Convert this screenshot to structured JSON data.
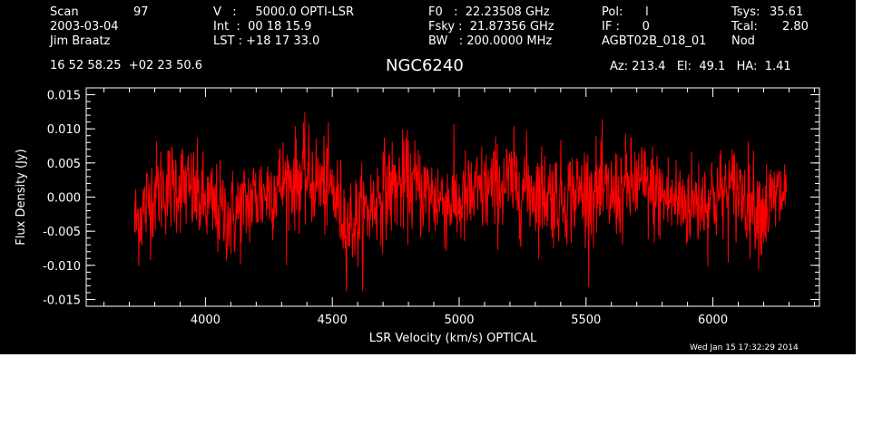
{
  "header": {
    "col1": {
      "scan_label": "Scan",
      "scan_value": "97",
      "date": "2003-03-04",
      "observer": "Jim Braatz"
    },
    "col2": {
      "v_line": "V   :     5000.0 OPTI-LSR",
      "int_line": "Int  :  00 18 15.9",
      "lst_line": "LST : +18 17 33.0"
    },
    "col3": {
      "f0_line": "F0   :  22.23508 GHz",
      "fsky_line": "Fsky :  21.87356 GHz",
      "bw_line": "BW   : 200.0000 MHz"
    },
    "col4": {
      "pol_line": "Pol:      l",
      "if_line": "IF :      0",
      "session": "AGBT02B_018_01"
    },
    "col5": {
      "tsys_label": "Tsys:",
      "tsys_value": "35.61",
      "tcal_label": "Tcal:",
      "tcal_value": "2.80",
      "mode": "Nod"
    },
    "coords": "16 52 58.25  +02 23 50.6",
    "source": "NGC6240",
    "pointing": "Az: 213.4   El:  49.1   HA:  1.41"
  },
  "timestamp": "Wed Jan 15 17:32:29 2014",
  "colors": {
    "background": "#000000",
    "axes": "#ffffff",
    "spectrum": "#ff0000"
  },
  "chart_data": {
    "type": "line",
    "xlabel": "LSR Velocity (km/s) OPTICAL",
    "ylabel": "Flux Density (Jy)",
    "xlim": [
      3530,
      6420
    ],
    "ylim": [
      -0.016,
      0.016
    ],
    "xticks": [
      4000,
      4500,
      5000,
      5500,
      6000
    ],
    "xtick_labels": [
      "4000",
      "4500",
      "5000",
      "5500",
      "6000"
    ],
    "yticks": [
      -0.015,
      -0.01,
      -0.005,
      0.0,
      0.005,
      0.01,
      0.015
    ],
    "ytick_labels": [
      "-0.015",
      "-0.010",
      "-0.005",
      "0.000",
      "0.005",
      "0.010",
      "0.015"
    ],
    "series": [
      {
        "x": [
          3720,
          3800,
          3900,
          4000,
          4100,
          4200,
          4300,
          4400,
          4500,
          4560,
          4620,
          4700,
          4800,
          4900,
          5000,
          5100,
          5200,
          5300,
          5400,
          5500,
          5600,
          5700,
          5800,
          5900,
          6000,
          6100,
          6200,
          6290
        ],
        "y": [
          -0.004,
          0.001,
          0.002,
          -0.001,
          -0.003,
          0.0,
          0.002,
          0.003,
          0.001,
          -0.004,
          -0.003,
          0.001,
          0.002,
          0.0,
          -0.001,
          0.001,
          0.002,
          0.001,
          0.0,
          0.001,
          0.0,
          0.002,
          0.0,
          -0.001,
          0.0,
          0.001,
          -0.002,
          0.001
        ],
        "noise_rms": 0.0035
      }
    ]
  }
}
